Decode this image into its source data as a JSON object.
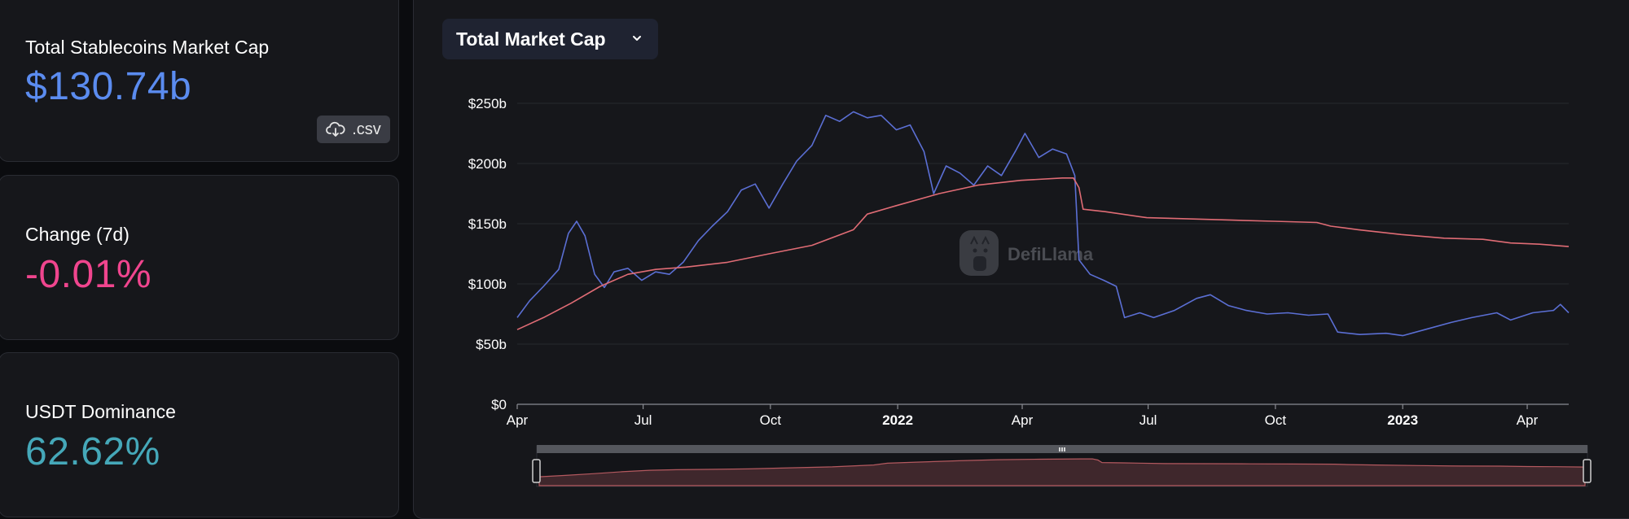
{
  "stats": {
    "market_cap": {
      "label": "Total Stablecoins Market Cap",
      "value": "$130.74b",
      "color": "#5b8cf0"
    },
    "csv_button": {
      "label": ".csv",
      "icon": "cloud-download-icon"
    },
    "change_7d": {
      "label": "Change (7d)",
      "value": "-0.01%",
      "color": "#f0458e"
    },
    "dominance": {
      "label": "USDT Dominance",
      "value": "62.62%",
      "color": "#45a8b9"
    }
  },
  "selector": {
    "label": "Total Market Cap",
    "icon": "chevron-down-icon"
  },
  "watermark": {
    "text": "DefiLlama",
    "icon": "llama-logo-icon"
  },
  "chart_data": {
    "type": "line",
    "x_range": [
      "2021-04-01",
      "2023-05-01"
    ],
    "x_ticks": [
      {
        "date": "2021-04-01",
        "label": "Apr",
        "bold": false
      },
      {
        "date": "2021-07-01",
        "label": "Jul",
        "bold": false
      },
      {
        "date": "2021-10-01",
        "label": "Oct",
        "bold": false
      },
      {
        "date": "2022-01-01",
        "label": "2022",
        "bold": true
      },
      {
        "date": "2022-04-01",
        "label": "Apr",
        "bold": false
      },
      {
        "date": "2022-07-01",
        "label": "Jul",
        "bold": false
      },
      {
        "date": "2022-10-01",
        "label": "Oct",
        "bold": false
      },
      {
        "date": "2023-01-01",
        "label": "2023",
        "bold": true
      },
      {
        "date": "2023-04-01",
        "label": "Apr",
        "bold": false
      }
    ],
    "y_ticks": [
      {
        "value": 0,
        "label": "$0"
      },
      {
        "value": 50,
        "label": "$50b"
      },
      {
        "value": 100,
        "label": "$100b"
      },
      {
        "value": 150,
        "label": "$150b"
      },
      {
        "value": 200,
        "label": "$200b"
      },
      {
        "value": 250,
        "label": "$250b"
      }
    ],
    "ylim": [
      0,
      250
    ],
    "grid": true,
    "series": [
      {
        "color": "#5b6fd4",
        "points": [
          [
            "2021-04-01",
            72
          ],
          [
            "2021-04-10",
            86
          ],
          [
            "2021-04-20",
            98
          ],
          [
            "2021-05-01",
            112
          ],
          [
            "2021-05-08",
            142
          ],
          [
            "2021-05-14",
            152
          ],
          [
            "2021-05-20",
            140
          ],
          [
            "2021-05-27",
            108
          ],
          [
            "2021-06-03",
            97
          ],
          [
            "2021-06-10",
            110
          ],
          [
            "2021-06-20",
            113
          ],
          [
            "2021-06-30",
            103
          ],
          [
            "2021-07-10",
            110
          ],
          [
            "2021-07-20",
            108
          ],
          [
            "2021-07-30",
            118
          ],
          [
            "2021-08-10",
            136
          ],
          [
            "2021-08-20",
            148
          ],
          [
            "2021-08-31",
            160
          ],
          [
            "2021-09-10",
            178
          ],
          [
            "2021-09-20",
            183
          ],
          [
            "2021-09-30",
            163
          ],
          [
            "2021-10-10",
            183
          ],
          [
            "2021-10-20",
            202
          ],
          [
            "2021-10-31",
            215
          ],
          [
            "2021-11-10",
            240
          ],
          [
            "2021-11-20",
            235
          ],
          [
            "2021-11-30",
            243
          ],
          [
            "2021-12-10",
            238
          ],
          [
            "2021-12-20",
            240
          ],
          [
            "2021-12-31",
            228
          ],
          [
            "2022-01-10",
            232
          ],
          [
            "2022-01-20",
            210
          ],
          [
            "2022-01-27",
            175
          ],
          [
            "2022-02-05",
            198
          ],
          [
            "2022-02-15",
            192
          ],
          [
            "2022-02-25",
            182
          ],
          [
            "2022-03-07",
            198
          ],
          [
            "2022-03-17",
            190
          ],
          [
            "2022-03-27",
            210
          ],
          [
            "2022-04-03",
            225
          ],
          [
            "2022-04-13",
            205
          ],
          [
            "2022-04-23",
            212
          ],
          [
            "2022-05-03",
            208
          ],
          [
            "2022-05-09",
            190
          ],
          [
            "2022-05-12",
            120
          ],
          [
            "2022-05-20",
            108
          ],
          [
            "2022-05-30",
            103
          ],
          [
            "2022-06-08",
            98
          ],
          [
            "2022-06-14",
            72
          ],
          [
            "2022-06-25",
            76
          ],
          [
            "2022-07-05",
            72
          ],
          [
            "2022-07-20",
            78
          ],
          [
            "2022-08-05",
            88
          ],
          [
            "2022-08-15",
            91
          ],
          [
            "2022-08-28",
            82
          ],
          [
            "2022-09-10",
            78
          ],
          [
            "2022-09-25",
            75
          ],
          [
            "2022-10-10",
            76
          ],
          [
            "2022-10-25",
            74
          ],
          [
            "2022-11-08",
            75
          ],
          [
            "2022-11-15",
            60
          ],
          [
            "2022-12-01",
            58
          ],
          [
            "2022-12-20",
            59
          ],
          [
            "2023-01-01",
            57
          ],
          [
            "2023-01-20",
            63
          ],
          [
            "2023-02-05",
            68
          ],
          [
            "2023-02-20",
            72
          ],
          [
            "2023-03-10",
            76
          ],
          [
            "2023-03-20",
            70
          ],
          [
            "2023-04-05",
            76
          ],
          [
            "2023-04-20",
            78
          ],
          [
            "2023-04-25",
            83
          ],
          [
            "2023-05-01",
            76
          ]
        ]
      },
      {
        "color": "#e06c75",
        "points": [
          [
            "2021-04-01",
            62
          ],
          [
            "2021-04-20",
            72
          ],
          [
            "2021-05-10",
            84
          ],
          [
            "2021-05-31",
            98
          ],
          [
            "2021-06-20",
            108
          ],
          [
            "2021-07-10",
            112
          ],
          [
            "2021-08-01",
            114
          ],
          [
            "2021-08-31",
            118
          ],
          [
            "2021-09-30",
            125
          ],
          [
            "2021-10-31",
            132
          ],
          [
            "2021-11-30",
            145
          ],
          [
            "2021-12-10",
            158
          ],
          [
            "2021-12-31",
            165
          ],
          [
            "2022-01-31",
            175
          ],
          [
            "2022-02-28",
            182
          ],
          [
            "2022-03-31",
            186
          ],
          [
            "2022-04-30",
            188
          ],
          [
            "2022-05-08",
            188
          ],
          [
            "2022-05-12",
            180
          ],
          [
            "2022-05-15",
            162
          ],
          [
            "2022-05-31",
            160
          ],
          [
            "2022-06-30",
            155
          ],
          [
            "2022-07-31",
            154
          ],
          [
            "2022-08-31",
            153
          ],
          [
            "2022-09-30",
            152
          ],
          [
            "2022-10-31",
            151
          ],
          [
            "2022-11-10",
            148
          ],
          [
            "2022-11-30",
            145
          ],
          [
            "2022-12-31",
            141
          ],
          [
            "2023-01-31",
            138
          ],
          [
            "2023-02-28",
            137
          ],
          [
            "2023-03-20",
            134
          ],
          [
            "2023-04-10",
            133
          ],
          [
            "2023-05-01",
            131
          ]
        ]
      }
    ]
  }
}
